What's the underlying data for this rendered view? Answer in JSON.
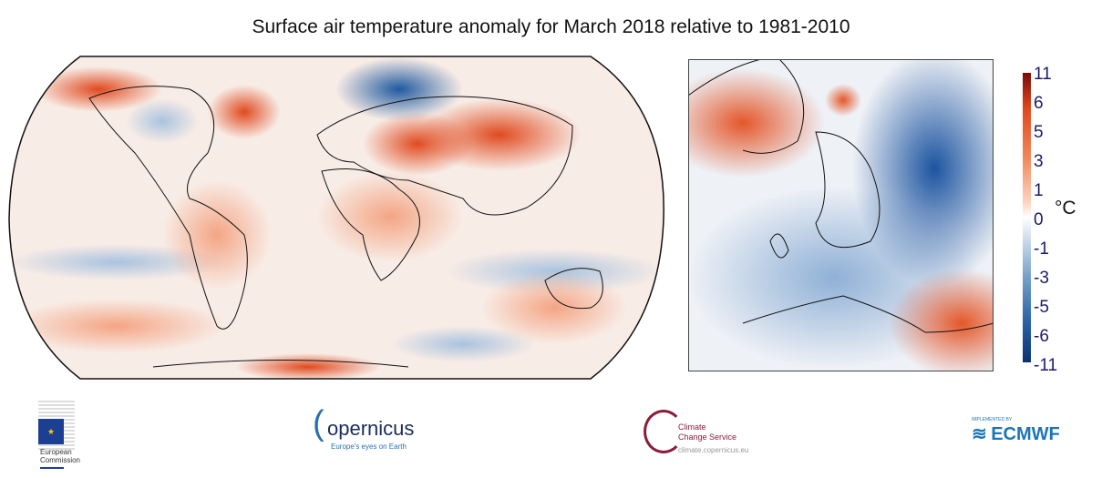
{
  "title": "Surface air temperature anomaly for March 2018 relative to 1981-2010",
  "colorbar": {
    "unit": "°C",
    "ticks": [
      "11",
      "6",
      "5",
      "3",
      "1",
      "0",
      "-1",
      "-3",
      "-5",
      "-6",
      "-11"
    ],
    "colors": {
      "max": "#7a0a06",
      "warm": "#e0451b",
      "zero": "#ffffff",
      "cool": "#2c66a8",
      "min": "#0b3270"
    }
  },
  "logos": {
    "ec": {
      "line1": "European",
      "line2": "Commission"
    },
    "copernicus": {
      "name": "opernicus",
      "tagline": "Europe's eyes on Earth"
    },
    "c3s": {
      "line1": "Climate",
      "line2": "Change Service",
      "url": "climate.copernicus.eu"
    },
    "ecmwf": {
      "pre": "IMPLEMENTED BY",
      "name": "ECMWF"
    }
  }
}
